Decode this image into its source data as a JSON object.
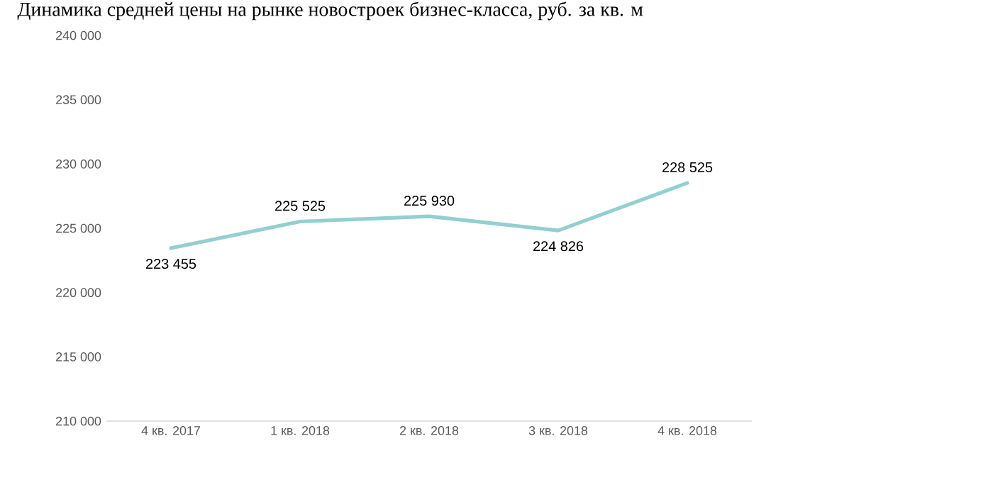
{
  "chart_data": {
    "type": "line",
    "title": "Динамика средней цены на рынке новостроек бизнес-класса, руб. за кв. м",
    "categories": [
      "4 кв. 2017",
      "1 кв. 2018",
      "2 кв. 2018",
      "3 кв. 2018",
      "4 кв. 2018"
    ],
    "values": [
      223455,
      225525,
      225930,
      224826,
      228525
    ],
    "value_labels": [
      "223 455",
      "225 525",
      "225 930",
      "224 826",
      "228 525"
    ],
    "color": "#93cfd0",
    "marker": "none",
    "line_style": "solid",
    "ylim": [
      210000,
      240000
    ],
    "yticks": [
      {
        "value": 210000,
        "label": "210 000"
      },
      {
        "value": 215000,
        "label": "215 000"
      },
      {
        "value": 220000,
        "label": "220 000"
      },
      {
        "value": 225000,
        "label": "225 000"
      },
      {
        "value": 230000,
        "label": "230 000"
      },
      {
        "value": 235000,
        "label": "235 000"
      },
      {
        "value": 240000,
        "label": "240 000"
      }
    ]
  }
}
